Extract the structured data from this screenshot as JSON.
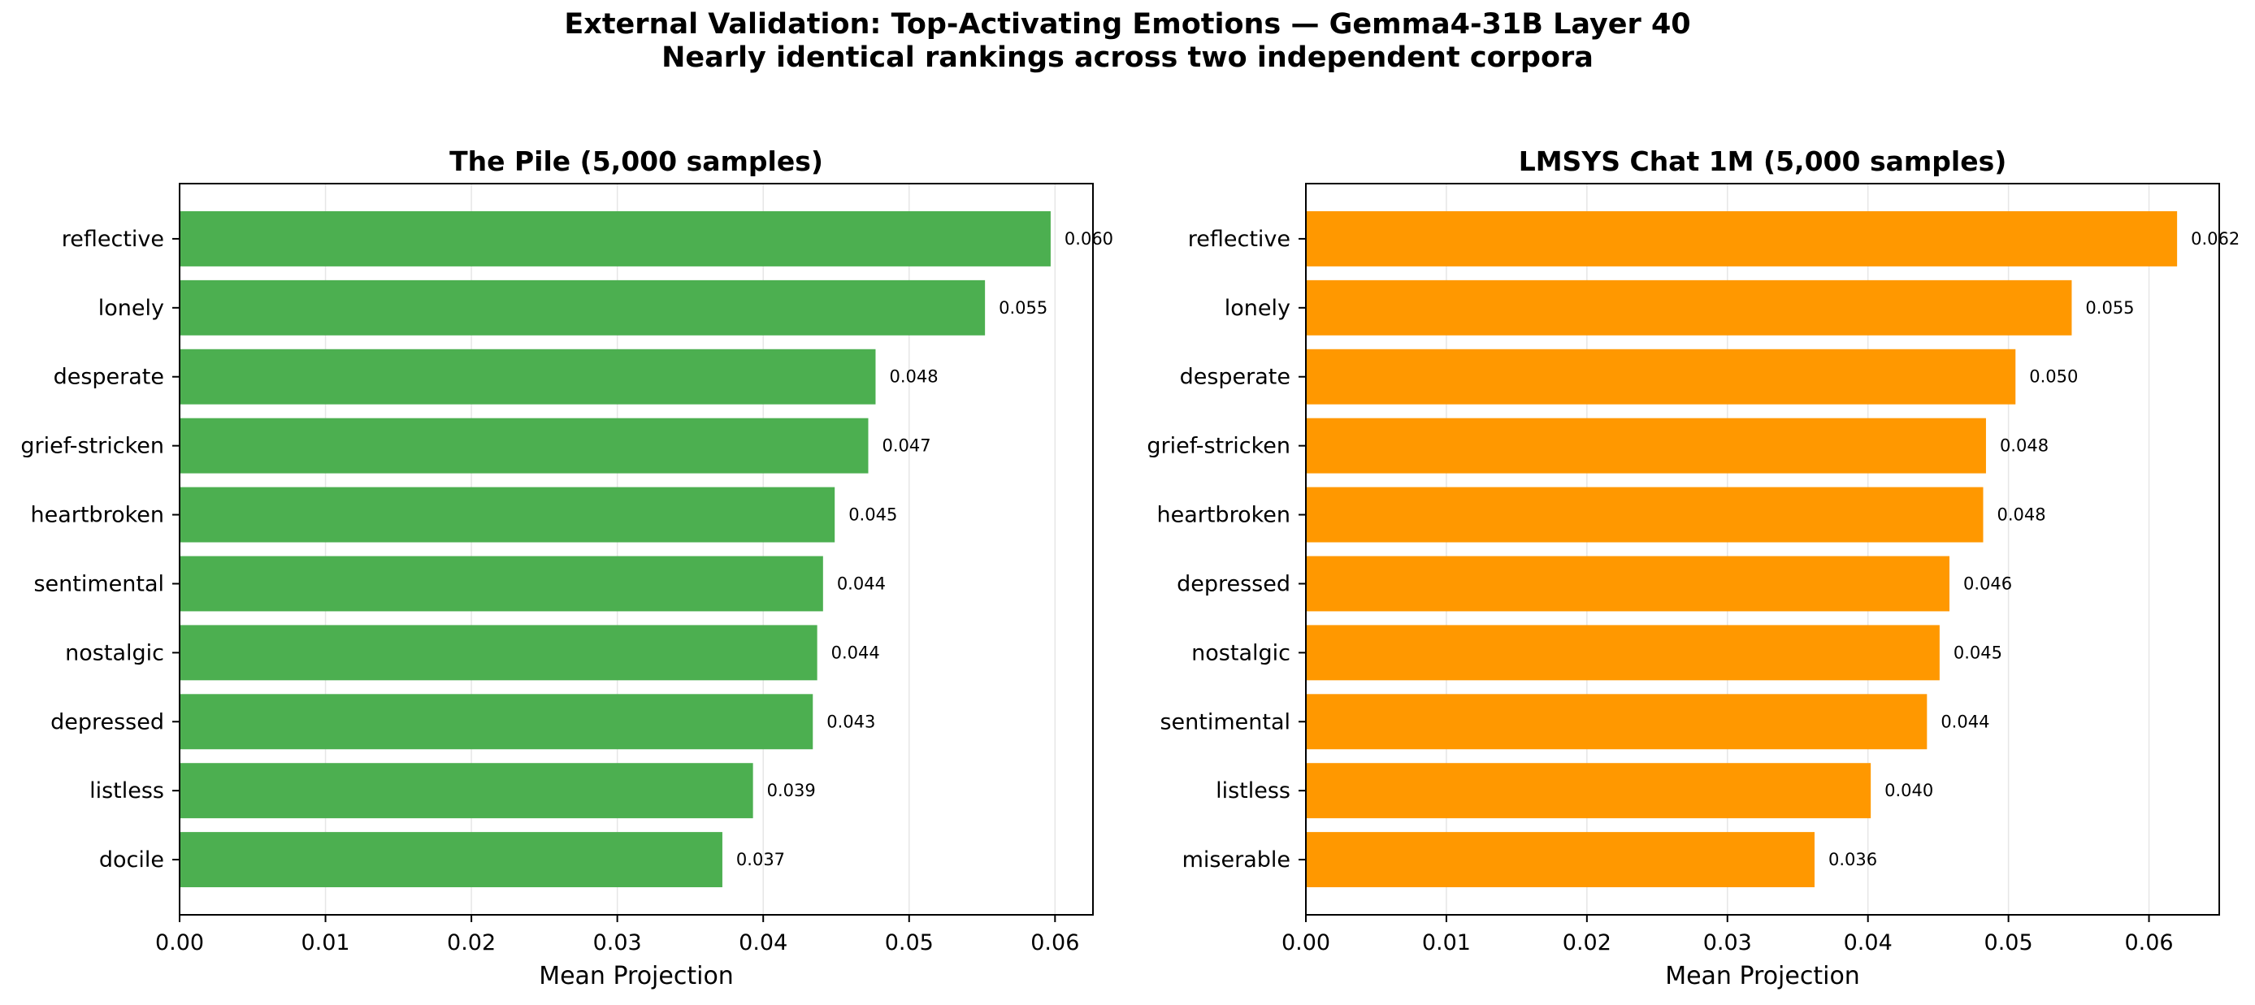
{
  "figure": {
    "title_line1": "External Validation: Top-Activating Emotions — Gemma4-31B Layer 40",
    "title_line2": "Nearly identical rankings across two independent corpora"
  },
  "chart_data": [
    {
      "type": "bar",
      "orientation": "horizontal",
      "title": "The Pile (5,000 samples)",
      "xlabel": "Mean Projection",
      "ylabel": "",
      "xlim": [
        0,
        0.0626
      ],
      "xticks": [
        0.0,
        0.01,
        0.02,
        0.03,
        0.04,
        0.05,
        0.06
      ],
      "xtick_labels": [
        "0.00",
        "0.01",
        "0.02",
        "0.03",
        "0.04",
        "0.05",
        "0.06"
      ],
      "grid": "vertical",
      "color": "#4caf50",
      "categories": [
        "reflective",
        "lonely",
        "desperate",
        "grief-stricken",
        "heartbroken",
        "sentimental",
        "nostalgic",
        "depressed",
        "listless",
        "docile"
      ],
      "values": [
        0.0597,
        0.0552,
        0.0477,
        0.0472,
        0.0449,
        0.0441,
        0.0437,
        0.0434,
        0.0393,
        0.0372
      ],
      "value_labels": [
        "0.060",
        "0.055",
        "0.048",
        "0.047",
        "0.045",
        "0.044",
        "0.044",
        "0.043",
        "0.039",
        "0.037"
      ]
    },
    {
      "type": "bar",
      "orientation": "horizontal",
      "title": "LMSYS Chat 1M (5,000 samples)",
      "xlabel": "Mean Projection",
      "ylabel": "",
      "xlim": [
        0,
        0.065
      ],
      "xticks": [
        0.0,
        0.01,
        0.02,
        0.03,
        0.04,
        0.05,
        0.06
      ],
      "xtick_labels": [
        "0.00",
        "0.01",
        "0.02",
        "0.03",
        "0.04",
        "0.05",
        "0.06"
      ],
      "grid": "vertical",
      "color": "#ff9800",
      "categories": [
        "reflective",
        "lonely",
        "desperate",
        "grief-stricken",
        "heartbroken",
        "depressed",
        "nostalgic",
        "sentimental",
        "listless",
        "miserable"
      ],
      "values": [
        0.062,
        0.0545,
        0.0505,
        0.0484,
        0.0482,
        0.0458,
        0.0451,
        0.0442,
        0.0402,
        0.0362
      ],
      "value_labels": [
        "0.062",
        "0.055",
        "0.050",
        "0.048",
        "0.048",
        "0.046",
        "0.045",
        "0.044",
        "0.040",
        "0.036"
      ]
    }
  ]
}
